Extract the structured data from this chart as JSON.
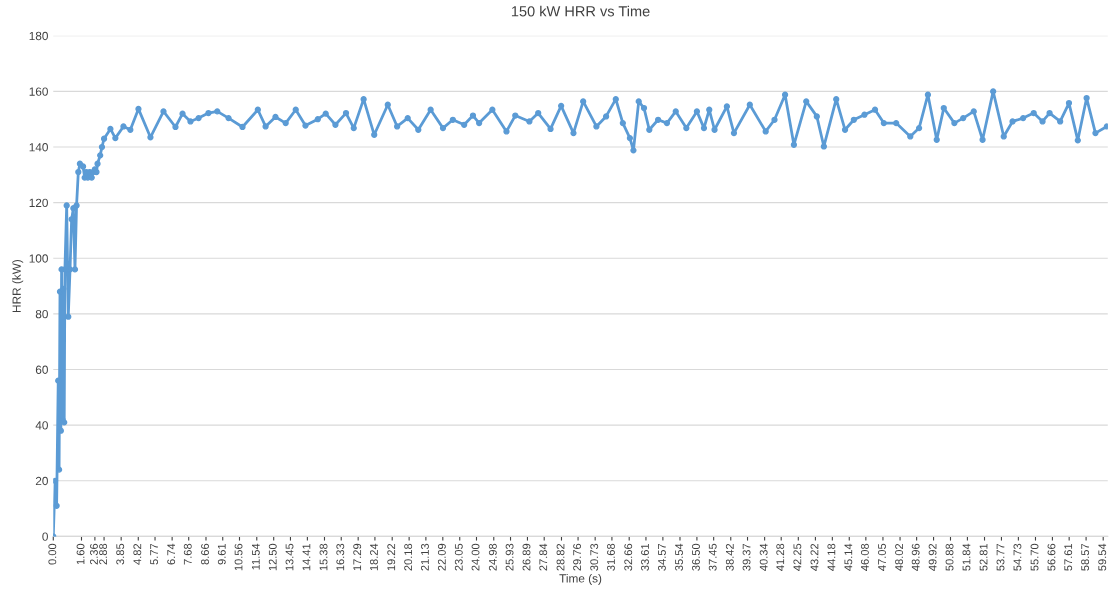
{
  "chart_data": {
    "type": "line",
    "title": "150 kW HRR vs Time",
    "xlabel": "Time (s)",
    "ylabel": "HRR (kW)",
    "x": [
      0,
      0.1,
      0.19,
      0.28,
      0.33,
      0.38,
      0.43,
      0.47,
      0.52,
      0.57,
      0.62,
      0.66,
      0.76,
      0.85,
      0.95,
      1.04,
      1.14,
      1.23,
      1.32,
      1.42,
      1.51,
      1.69,
      1.78,
      1.87,
      1.96,
      2.07,
      2.18,
      2.27,
      2.36,
      2.45,
      2.51,
      2.66,
      2.76,
      2.88,
      3.24,
      3.52,
      3.98,
      4.37,
      4.83,
      5.51,
      6.25,
      6.93,
      7.33,
      7.78,
      8.24,
      8.8,
      9.3,
      9.94,
      10.73,
      11.6,
      12.04,
      12.6,
      13.18,
      13.75,
      14.3,
      15,
      15.45,
      16,
      16.6,
      17.04,
      17.6,
      18.2,
      18.97,
      19.5,
      20.1,
      20.7,
      21.4,
      22.1,
      22.66,
      23.3,
      23.8,
      24.15,
      24.9,
      25.7,
      26.2,
      27,
      27.5,
      28.2,
      28.8,
      29.5,
      30.05,
      30.8,
      31.35,
      31.9,
      32.3,
      32.7,
      32.9,
      33.2,
      33.5,
      33.8,
      34.3,
      34.8,
      35.3,
      35.9,
      36.5,
      36.9,
      37.2,
      37.5,
      38.2,
      38.6,
      39.5,
      40.4,
      40.9,
      41.5,
      42,
      42.7,
      43.3,
      43.7,
      44.4,
      44.9,
      45.4,
      46,
      46.6,
      47.1,
      47.8,
      48.6,
      49.1,
      49.6,
      50.1,
      50.5,
      51.1,
      51.6,
      52.2,
      52.7,
      53.3,
      53.9,
      54.4,
      55,
      55.6,
      56.1,
      56.5,
      57.1,
      57.6,
      58.1,
      58.6,
      59.1,
      59.75
    ],
    "series": [
      {
        "color": "#5b9bd5",
        "values": [
          0,
          20,
          11,
          56,
          24,
          88,
          38,
          96,
          42,
          89,
          41,
          96,
          119,
          79,
          96,
          114,
          118,
          96,
          119,
          131,
          134,
          133,
          129,
          131,
          129,
          131,
          129,
          131,
          132,
          131,
          134,
          137,
          140,
          143,
          146.5,
          143.2,
          147.4,
          146.2,
          153.7,
          143.5,
          152.8,
          147.2,
          152,
          149.2,
          150.4,
          152.2,
          152.8,
          150.4,
          147.2,
          153.4,
          147.4,
          150.8,
          148.6,
          153.4,
          147.7,
          150,
          152,
          148,
          152.2,
          146.8,
          157.2,
          144.4,
          155.2,
          147.4,
          150.4,
          146.2,
          153.4,
          146.8,
          149.8,
          148,
          151.3,
          148.6,
          153.4,
          145.6,
          151.3,
          149.2,
          152.2,
          146.5,
          154.8,
          145,
          156.4,
          147.4,
          151,
          157.2,
          148.6,
          143.2,
          138.8,
          156.4,
          154,
          146.2,
          149.8,
          148.6,
          152.8,
          146.8,
          152.8,
          146.8,
          153.4,
          146.2,
          154.6,
          145,
          155.2,
          145.6,
          149.8,
          158.8,
          140.8,
          156.4,
          151,
          140.2,
          157.2,
          146.2,
          149.8,
          151.6,
          153.4,
          148.6,
          148.6,
          143.8,
          146.8,
          158.8,
          142.6,
          154,
          148.6,
          150.4,
          152.8,
          142.6,
          160,
          143.8,
          149.2,
          150.4,
          152.2,
          149.2,
          152.2,
          149.2,
          155.8,
          142.4,
          157.6,
          145,
          147.4
        ]
      }
    ],
    "xlim": [
      0,
      59.8
    ],
    "xticks": [
      {
        "value": 0,
        "label": "0.00"
      },
      {
        "value": 1.6,
        "label": "1.60"
      },
      {
        "value": 2.36,
        "label": "2.36"
      },
      {
        "value": 2.88,
        "label": "2.88"
      },
      {
        "value": 3.85,
        "label": "3.85"
      },
      {
        "value": 4.82,
        "label": "4.82"
      },
      {
        "value": 5.77,
        "label": "5.77"
      },
      {
        "value": 6.74,
        "label": "6.74"
      },
      {
        "value": 7.68,
        "label": "7.68"
      },
      {
        "value": 8.66,
        "label": "8.66"
      },
      {
        "value": 9.61,
        "label": "9.61"
      },
      {
        "value": 10.56,
        "label": "10.56"
      },
      {
        "value": 11.54,
        "label": "11.54"
      },
      {
        "value": 12.5,
        "label": "12.50"
      },
      {
        "value": 13.45,
        "label": "13.45"
      },
      {
        "value": 14.41,
        "label": "14.41"
      },
      {
        "value": 15.38,
        "label": "15.38"
      },
      {
        "value": 16.33,
        "label": "16.33"
      },
      {
        "value": 17.29,
        "label": "17.29"
      },
      {
        "value": 18.24,
        "label": "18.24"
      },
      {
        "value": 19.22,
        "label": "19.22"
      },
      {
        "value": 20.18,
        "label": "20.18"
      },
      {
        "value": 21.13,
        "label": "21.13"
      },
      {
        "value": 22.09,
        "label": "22.09"
      },
      {
        "value": 23.05,
        "label": "23.05"
      },
      {
        "value": 24,
        "label": "24.00"
      },
      {
        "value": 24.98,
        "label": "24.98"
      },
      {
        "value": 25.93,
        "label": "25.93"
      },
      {
        "value": 26.89,
        "label": "26.89"
      },
      {
        "value": 27.84,
        "label": "27.84"
      },
      {
        "value": 28.82,
        "label": "28.82"
      },
      {
        "value": 29.76,
        "label": "29.76"
      },
      {
        "value": 30.73,
        "label": "30.73"
      },
      {
        "value": 31.68,
        "label": "31.68"
      },
      {
        "value": 32.66,
        "label": "32.66"
      },
      {
        "value": 33.61,
        "label": "33.61"
      },
      {
        "value": 34.57,
        "label": "34.57"
      },
      {
        "value": 35.54,
        "label": "35.54"
      },
      {
        "value": 36.5,
        "label": "36.50"
      },
      {
        "value": 37.45,
        "label": "37.45"
      },
      {
        "value": 38.42,
        "label": "38.42"
      },
      {
        "value": 39.37,
        "label": "39.37"
      },
      {
        "value": 40.34,
        "label": "40.34"
      },
      {
        "value": 41.28,
        "label": "41.28"
      },
      {
        "value": 42.25,
        "label": "42.25"
      },
      {
        "value": 43.22,
        "label": "43.22"
      },
      {
        "value": 44.18,
        "label": "44.18"
      },
      {
        "value": 45.14,
        "label": "45.14"
      },
      {
        "value": 46.08,
        "label": "46.08"
      },
      {
        "value": 47.05,
        "label": "47.05"
      },
      {
        "value": 48.02,
        "label": "48.02"
      },
      {
        "value": 48.96,
        "label": "48.96"
      },
      {
        "value": 49.92,
        "label": "49.92"
      },
      {
        "value": 50.88,
        "label": "50.88"
      },
      {
        "value": 51.84,
        "label": "51.84"
      },
      {
        "value": 52.81,
        "label": "52.81"
      },
      {
        "value": 53.77,
        "label": "53.77"
      },
      {
        "value": 54.73,
        "label": "54.73"
      },
      {
        "value": 55.7,
        "label": "55.70"
      },
      {
        "value": 56.66,
        "label": "56.66"
      },
      {
        "value": 57.61,
        "label": "57.61"
      },
      {
        "value": 58.57,
        "label": "58.57"
      },
      {
        "value": 59.54,
        "label": "59.54"
      }
    ],
    "ylim": [
      0,
      180
    ],
    "yticks": [
      0,
      20,
      40,
      60,
      80,
      100,
      120,
      140,
      160,
      180
    ],
    "grid": "y",
    "legend": false,
    "marker": "circle",
    "line_style": "solid"
  }
}
